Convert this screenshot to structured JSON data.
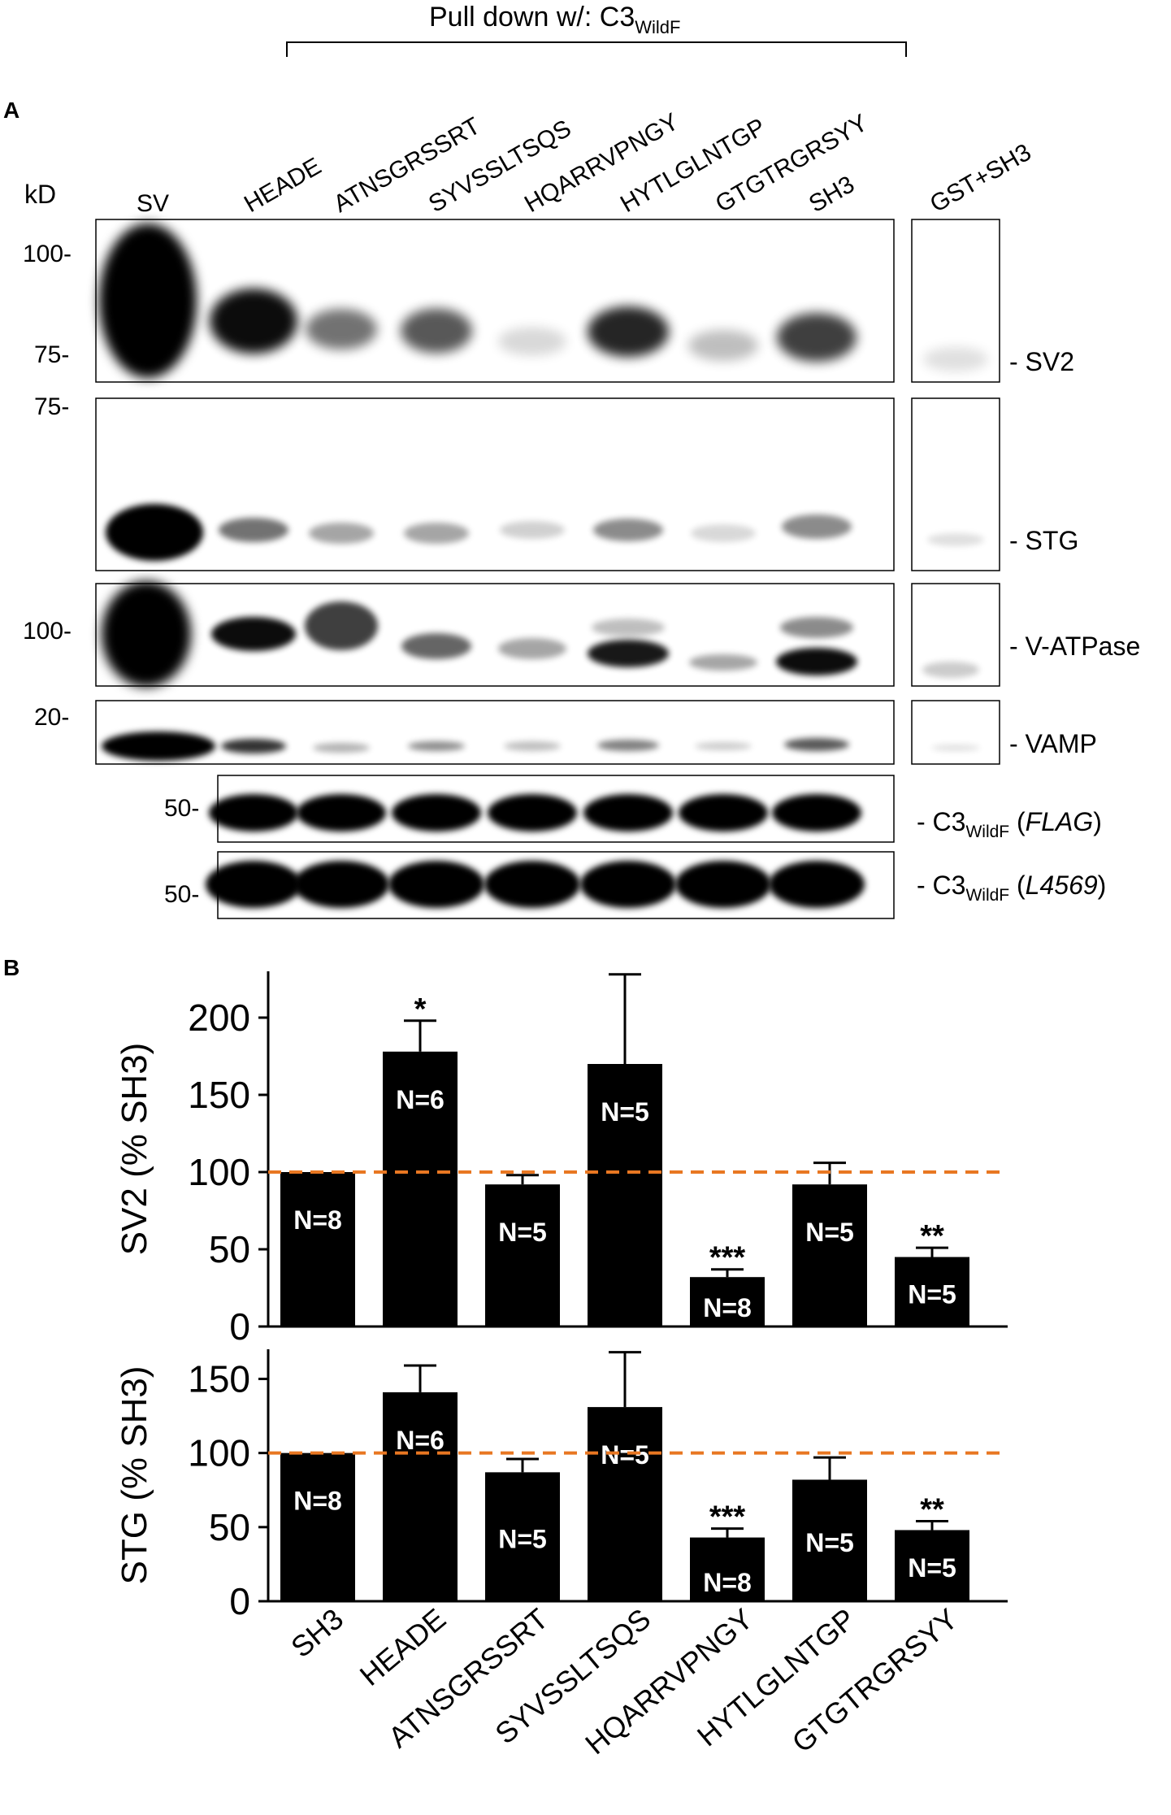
{
  "panel_a": {
    "panel_label": "A",
    "header_text": "Pull down w/: C3",
    "header_sub": "WildF",
    "kd_label": "kD",
    "lanes": [
      "SV",
      "HEADE",
      "ATNSGRSSRT",
      "SYVSSLTSQS",
      "HQARRVPNGY",
      "HYTLGLNTGP",
      "GTGTRGRSYY",
      "SH3"
    ],
    "control_lane": "GST+SH3",
    "blots": [
      {
        "name": "SV2",
        "label": "- SV2",
        "markers": [
          "100-",
          "75-"
        ]
      },
      {
        "name": "STG",
        "label": "- STG",
        "markers": [
          "75-"
        ]
      },
      {
        "name": "V-ATPase",
        "label": "- V-ATPase",
        "markers": [
          "100-"
        ]
      },
      {
        "name": "VAMP",
        "label": "- VAMP",
        "markers": [
          "20-"
        ]
      }
    ],
    "c3_blots": [
      {
        "prefix": "- C3",
        "sub": "WildF",
        "paren_open": " (",
        "antibody": "FLAG",
        "paren_close": ")",
        "marker": "50-"
      },
      {
        "prefix": "- C3",
        "sub": "WildF",
        "paren_open": " (",
        "antibody": "L4569",
        "paren_close": ")",
        "marker": "50-"
      }
    ]
  },
  "panel_b_label": "B",
  "reference_line_color": "#e87722",
  "bar_color": "#000000",
  "chart_data": [
    {
      "type": "bar",
      "ylabel": "SV2 (% SH3)",
      "ylim": [
        0,
        230
      ],
      "yticks": [
        0,
        50,
        100,
        150,
        200
      ],
      "reference_line": 100,
      "categories": [
        "SH3",
        "HEADE",
        "ATNSGRSSRT",
        "SYVSSLTSQS",
        "HQARRVPNGY",
        "HYTLGLNTGP",
        "GTGTRGRSYY"
      ],
      "values": [
        100,
        178,
        92,
        170,
        32,
        92,
        45
      ],
      "errors": [
        0,
        20,
        6,
        58,
        5,
        14,
        6
      ],
      "n_labels": [
        "N=8",
        "N=6",
        "N=5",
        "N=5",
        "N=8",
        "N=5",
        "N=5"
      ],
      "significance": [
        "",
        "*",
        "",
        "",
        "***",
        "",
        "**"
      ]
    },
    {
      "type": "bar",
      "ylabel": "STG (% SH3)",
      "ylim": [
        0,
        170
      ],
      "yticks": [
        0,
        50,
        100,
        150
      ],
      "reference_line": 100,
      "categories": [
        "SH3",
        "HEADE",
        "ATNSGRSSRT",
        "SYVSSLTSQS",
        "HQARRVPNGY",
        "HYTLGLNTGP",
        "GTGTRGRSYY"
      ],
      "values": [
        100,
        141,
        87,
        131,
        43,
        82,
        48
      ],
      "errors": [
        0,
        18,
        9,
        37,
        6,
        15,
        6
      ],
      "n_labels": [
        "N=8",
        "N=6",
        "N=5",
        "N=5",
        "N=8",
        "N=5",
        "N=5"
      ],
      "significance": [
        "",
        "",
        "",
        "",
        "***",
        "",
        "**"
      ]
    }
  ]
}
